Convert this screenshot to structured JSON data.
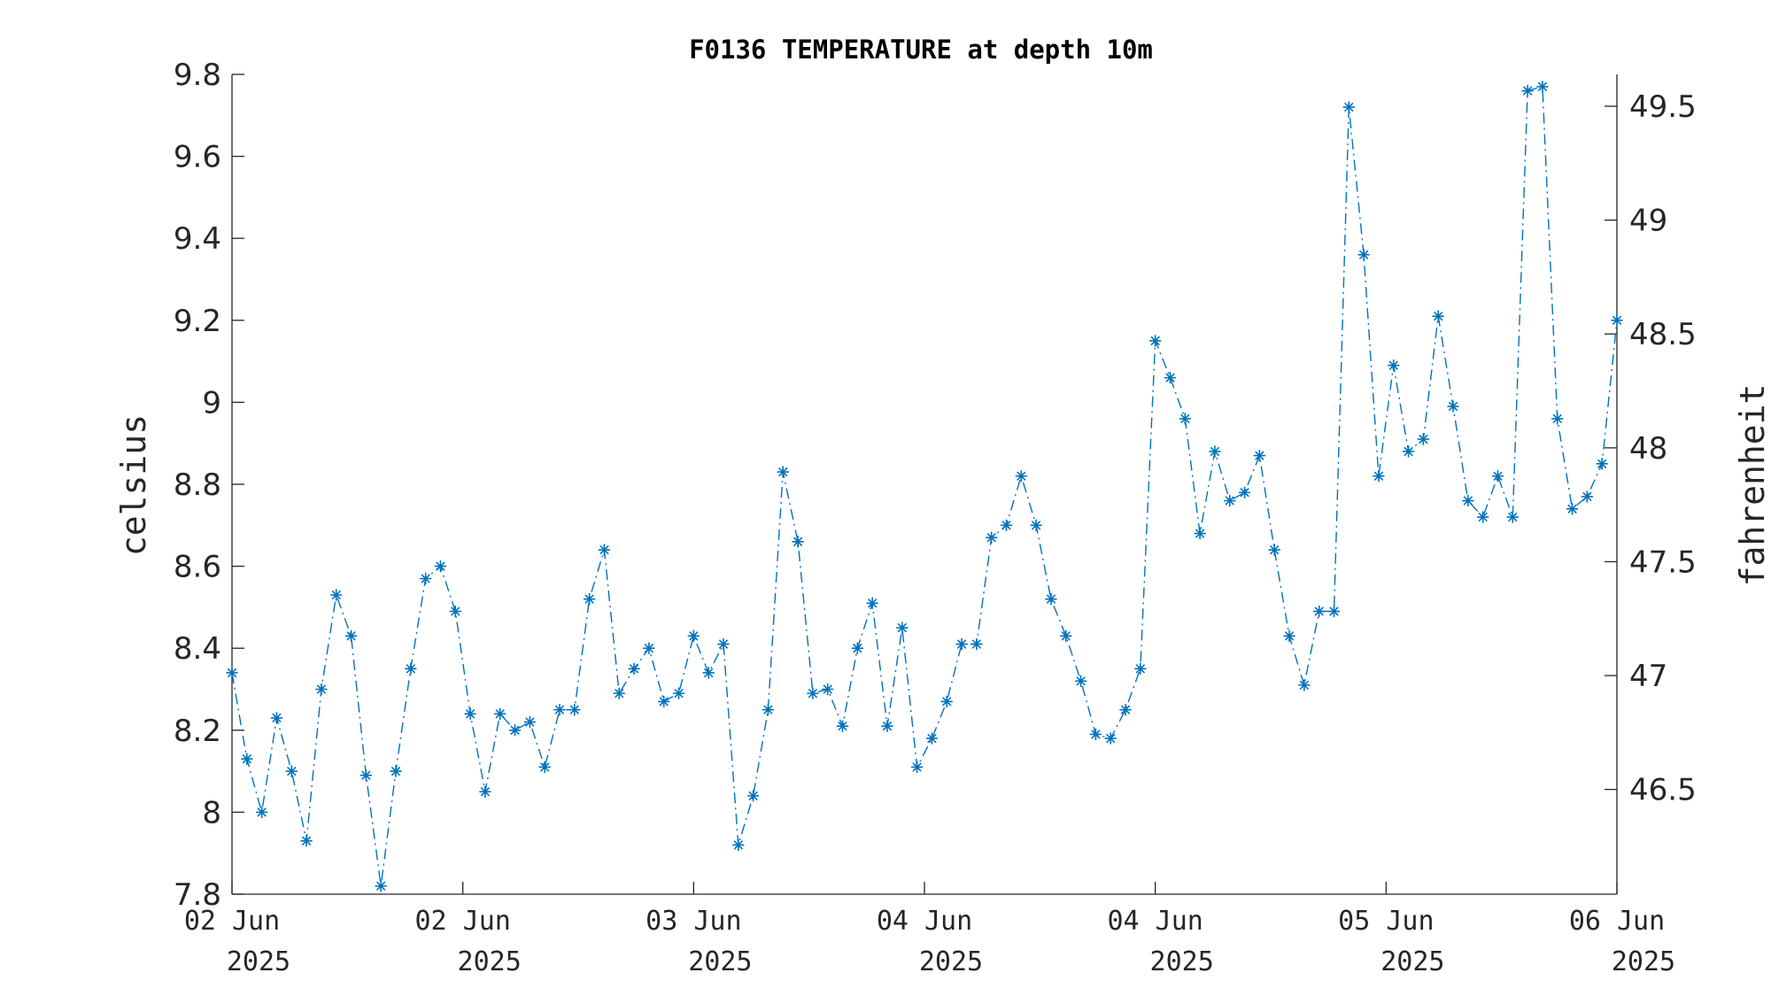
{
  "chart_data": {
    "type": "line",
    "title": "F0136 TEMPERATURE at depth 10m",
    "ylabel": "celsius",
    "ylabel_right": "fahrenheit",
    "ylim": [
      7.8,
      9.8
    ],
    "ylim_right": [
      46.04,
      49.64
    ],
    "yticks": [
      "7.8",
      "8",
      "8.2",
      "8.4",
      "8.6",
      "8.8",
      "9",
      "9.2",
      "9.4",
      "9.6",
      "9.8"
    ],
    "yticks_right": [
      "46.5",
      "47",
      "47.5",
      "48",
      "48.5",
      "49",
      "49.5"
    ],
    "xlim": [
      "2025-06-02 00:00",
      "2025-06-06 00:00"
    ],
    "xticks": [
      {
        "line1": "02 Jun",
        "line2": "2025"
      },
      {
        "line1": "02 Jun",
        "line2": "2025"
      },
      {
        "line1": "03 Jun",
        "line2": "2025"
      },
      {
        "line1": "04 Jun",
        "line2": "2025"
      },
      {
        "line1": "04 Jun",
        "line2": "2025"
      },
      {
        "line1": "05 Jun",
        "line2": "2025"
      },
      {
        "line1": "06 Jun",
        "line2": "2025"
      }
    ],
    "grid": false,
    "legend": "none",
    "series": [
      {
        "color": "#0072BD",
        "line_style": "dash-dot",
        "marker": "asterisk",
        "values": [
          8.34,
          8.13,
          8.0,
          8.23,
          8.1,
          7.93,
          8.3,
          8.53,
          8.43,
          8.09,
          7.82,
          8.1,
          8.35,
          8.57,
          8.6,
          8.49,
          8.24,
          8.05,
          8.24,
          8.2,
          8.22,
          8.11,
          8.25,
          8.25,
          8.52,
          8.64,
          8.29,
          8.35,
          8.4,
          8.27,
          8.29,
          8.43,
          8.34,
          8.41,
          7.92,
          8.04,
          8.25,
          8.83,
          8.66,
          8.29,
          8.3,
          8.21,
          8.4,
          8.51,
          8.21,
          8.45,
          8.11,
          8.18,
          8.27,
          8.41,
          8.41,
          8.67,
          8.7,
          8.82,
          8.7,
          8.52,
          8.43,
          8.32,
          8.19,
          8.18,
          8.25,
          8.35,
          9.15,
          9.06,
          8.96,
          8.68,
          8.88,
          8.76,
          8.78,
          8.87,
          8.64,
          8.43,
          8.31,
          8.49,
          8.49,
          9.72,
          9.36,
          8.82,
          9.09,
          8.88,
          8.91,
          9.21,
          8.99,
          8.76,
          8.72,
          8.82,
          8.72,
          9.76,
          9.77,
          8.96,
          8.74,
          8.77,
          8.85,
          9.2
        ]
      }
    ]
  }
}
